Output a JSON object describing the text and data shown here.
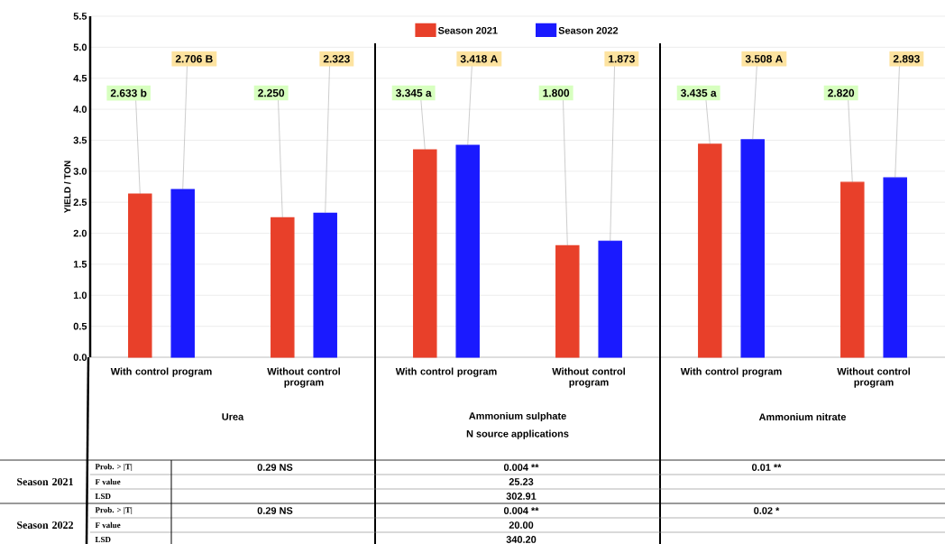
{
  "chart_data": {
    "type": "bar",
    "xlabel": "N source applications",
    "ylabel": "YIELD / TON",
    "categories": [
      "With control program",
      "Without control program",
      "With control program",
      "Without control program",
      "With control program",
      "Without control program"
    ],
    "series": [
      {
        "name": "Season 2021",
        "color": "#e8402a",
        "values": [
          2.633,
          2.25,
          3.345,
          1.8,
          3.435,
          2.82
        ],
        "value_labels": [
          "2.633 b",
          "2.250",
          "3.345 a",
          "1.800",
          "3.435 a",
          "2.820"
        ]
      },
      {
        "name": "Season 2022",
        "color": "#1a1aff",
        "values": [
          2.706,
          2.323,
          3.418,
          1.873,
          3.508,
          2.893
        ],
        "value_labels": [
          "2.706 B",
          "2.323",
          "3.418 A",
          "1.873",
          "3.508 A",
          "2.893"
        ]
      }
    ],
    "ylim": [
      0,
      5.5
    ],
    "yticks": [
      {
        "value": 0,
        "label": "0.0"
      },
      {
        "value": 0.5,
        "label": "0.5"
      },
      {
        "value": 1,
        "label": "1.0"
      },
      {
        "value": 1.5,
        "label": "1.5"
      },
      {
        "value": 2,
        "label": "2.0"
      },
      {
        "value": 2.5,
        "label": "2.5"
      },
      {
        "value": 3,
        "label": "3.0"
      },
      {
        "value": 3.5,
        "label": "3.5"
      },
      {
        "value": 4,
        "label": "4.0"
      },
      {
        "value": 4.5,
        "label": "4.5"
      },
      {
        "value": 5,
        "label": "5.0"
      },
      {
        "value": 5.5,
        "label": "5.5"
      }
    ],
    "grid": "y",
    "legend": "top",
    "annotations": [
      "Urea",
      "Ammonium sulphate",
      "Ammonium nitrate",
      "Season 2021",
      "Prob. > |T|",
      "0.29 NS",
      "0.004 **",
      "0.01 **",
      "F value",
      "25.23",
      "LSD",
      "302.91",
      "Season 2022",
      "Prob. > |T|",
      "0.29 NS",
      "0.004 **",
      "0.02 *",
      "F value",
      "20.00",
      "LSD",
      "340.20"
    ]
  }
}
